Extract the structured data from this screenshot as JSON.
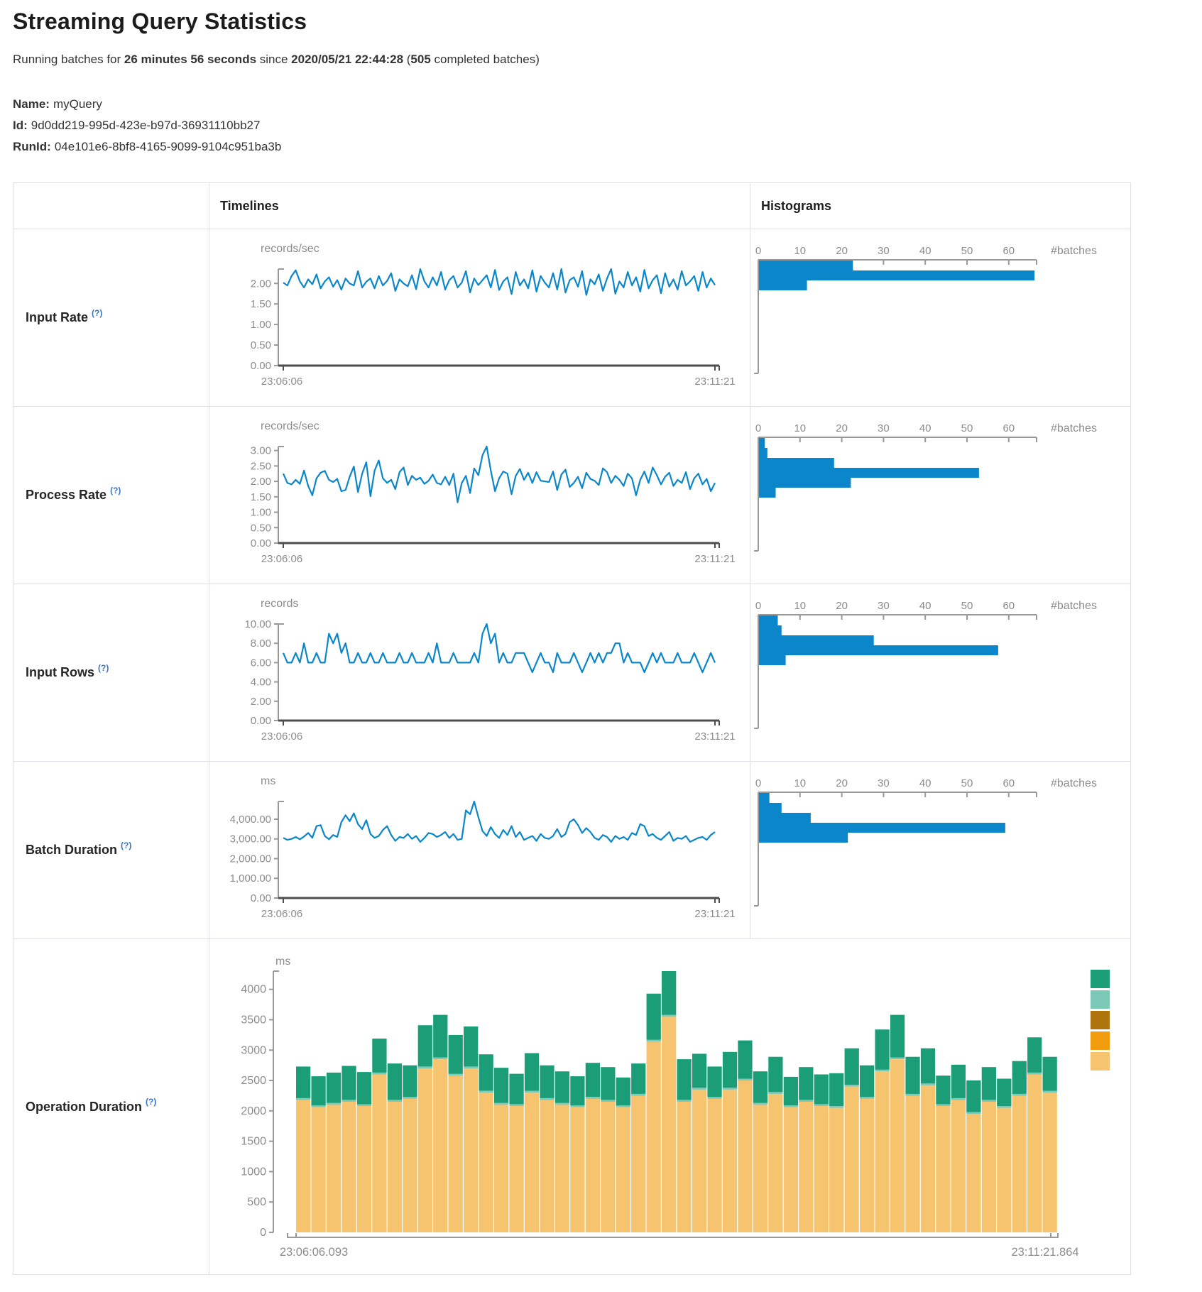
{
  "page": {
    "title": "Streaming Query Statistics",
    "subtitle": {
      "prefix": "Running batches for ",
      "duration": "26 minutes 56 seconds",
      "mid": " since ",
      "start_time": "2020/05/21 22:44:28",
      "open_paren": " (",
      "batch_count": "505",
      "suffix": " completed batches)"
    },
    "meta": [
      {
        "label": "Name:",
        "value": "myQuery"
      },
      {
        "label": "Id:",
        "value": "9d0dd219-995d-423e-b97d-36931110bb27"
      },
      {
        "label": "RunId:",
        "value": "04e101e6-8bf8-4165-9099-9104c951ba3b"
      }
    ]
  },
  "table": {
    "headers": {
      "timelines": "Timelines",
      "histograms": "Histograms"
    },
    "help_symbol": "(?)"
  },
  "chart_data": [
    {
      "label": "Input Rate",
      "timeline": {
        "type": "line",
        "unit": "records/sec",
        "line_color": "#0b86ca",
        "x_start": "23:06:06",
        "x_end": "23:11:21",
        "ymax": 2.35,
        "ytick_values": [
          2.0,
          1.5,
          1.0,
          0.5,
          0.0
        ],
        "ytick_labels": [
          "2.00",
          "1.50",
          "1.00",
          "0.50",
          "0.00"
        ],
        "values": [
          2.02,
          1.95,
          2.18,
          2.32,
          2.05,
          1.9,
          2.1,
          1.98,
          2.22,
          1.88,
          2.05,
          2.15,
          1.92,
          2.08,
          1.85,
          2.12,
          2.0,
          1.95,
          2.3,
          1.9,
          2.04,
          2.12,
          1.88,
          2.18,
          1.95,
          2.06,
          2.25,
          1.82,
          2.1,
          2.0,
          1.93,
          2.2,
          1.86,
          2.35,
          2.05,
          1.9,
          2.15,
          1.95,
          2.28,
          1.85,
          2.08,
          2.18,
          1.9,
          2.02,
          2.3,
          1.78,
          2.12,
          1.96,
          2.08,
          2.2,
          1.9,
          2.33,
          1.84,
          2.05,
          2.15,
          1.74,
          2.28,
          1.95,
          2.1,
          1.88,
          2.32,
          1.8,
          2.18,
          2.02,
          1.9,
          2.25,
          1.85,
          2.35,
          1.78,
          2.08,
          2.15,
          1.92,
          2.3,
          1.72,
          2.1,
          1.98,
          2.22,
          1.82,
          2.12,
          2.35,
          1.75,
          2.05,
          1.9,
          2.28,
          1.95,
          2.15,
          1.8,
          2.33,
          1.88,
          2.08,
          2.2,
          1.76,
          2.25,
          1.92,
          2.1,
          1.85,
          2.3,
          1.95,
          2.05,
          2.18,
          1.82,
          2.28,
          1.9,
          2.12,
          1.96
        ]
      },
      "histogram": {
        "type": "bar",
        "bar_color": "#0b86ca",
        "xlabel": "#batches",
        "xtick_values": [
          0,
          10,
          20,
          30,
          40,
          50,
          60
        ],
        "xtick_labels": [
          "0",
          "10",
          "20",
          "30",
          "40",
          "50",
          "60"
        ],
        "axis_max": 66.6,
        "bin_counts": [
          22.5,
          66,
          11.5
        ]
      }
    },
    {
      "label": "Process Rate",
      "timeline": {
        "type": "line",
        "unit": "records/sec",
        "line_color": "#0b86ca",
        "x_start": "23:06:06",
        "x_end": "23:11:21",
        "ymax": 3.13,
        "ytick_values": [
          3.0,
          2.5,
          2.0,
          1.5,
          1.0,
          0.5,
          0.0
        ],
        "ytick_labels": [
          "3.00",
          "2.50",
          "2.00",
          "1.50",
          "1.00",
          "0.50",
          "0.00"
        ],
        "values": [
          2.25,
          1.95,
          1.9,
          2.05,
          1.92,
          2.35,
          1.85,
          1.55,
          2.1,
          2.28,
          2.34,
          2.05,
          1.98,
          2.08,
          1.68,
          1.72,
          2.15,
          2.48,
          1.65,
          2.25,
          2.62,
          1.52,
          2.35,
          2.68,
          2.1,
          1.95,
          2.05,
          1.75,
          2.3,
          2.45,
          1.88,
          2.18,
          2.05,
          2.12,
          1.92,
          2.02,
          2.22,
          1.95,
          1.9,
          2.15,
          1.88,
          2.25,
          1.32,
          1.95,
          2.18,
          1.62,
          2.42,
          2.2,
          2.85,
          3.13,
          2.35,
          1.68,
          2.1,
          2.32,
          2.25,
          1.58,
          2.18,
          2.4,
          2.05,
          2.28,
          1.95,
          2.3,
          2.02,
          2.0,
          1.98,
          2.32,
          1.72,
          2.22,
          2.38,
          1.82,
          1.95,
          2.15,
          1.78,
          2.28,
          2.08,
          2.02,
          1.88,
          2.42,
          2.3,
          1.95,
          2.18,
          2.05,
          1.85,
          2.25,
          2.1,
          1.55,
          2.05,
          2.32,
          1.95,
          2.45,
          2.2,
          1.9,
          2.15,
          2.28,
          1.85,
          2.05,
          1.95,
          2.3,
          1.75,
          2.1,
          2.25,
          1.9,
          2.08,
          1.68,
          1.95
        ]
      },
      "histogram": {
        "type": "bar",
        "bar_color": "#0b86ca",
        "xlabel": "#batches",
        "xtick_values": [
          0,
          10,
          20,
          30,
          40,
          50,
          60
        ],
        "xtick_labels": [
          "0",
          "10",
          "20",
          "30",
          "40",
          "50",
          "60"
        ],
        "axis_max": 66.6,
        "bin_counts": [
          1.4,
          2,
          18,
          52.7,
          22,
          4
        ]
      }
    },
    {
      "label": "Input Rows",
      "timeline": {
        "type": "line",
        "unit": "records",
        "line_color": "#0b86ca",
        "x_start": "23:06:06",
        "x_end": "23:11:21",
        "ymax": 10,
        "ytick_values": [
          10,
          8,
          6,
          4,
          2,
          0
        ],
        "ytick_labels": [
          "10.00",
          "8.00",
          "6.00",
          "4.00",
          "2.00",
          "0.00"
        ],
        "values": [
          7,
          6,
          6,
          7,
          6,
          8,
          6,
          6,
          7,
          6,
          6,
          9,
          8,
          9,
          7,
          8,
          6,
          6,
          7,
          6,
          6,
          7,
          6,
          6,
          7,
          6,
          6,
          6,
          7,
          6,
          6,
          7,
          6,
          6,
          6,
          7,
          6,
          8,
          6,
          6,
          6,
          7,
          6,
          6,
          6,
          6,
          7,
          6,
          9,
          10,
          8,
          9,
          6,
          7,
          6,
          6,
          7,
          7,
          7,
          6,
          5,
          6,
          7,
          6,
          6,
          5,
          7,
          6,
          6,
          6,
          7,
          6,
          5,
          6,
          7,
          6,
          7,
          6,
          7,
          7,
          8,
          8,
          6,
          7,
          6,
          6,
          6,
          5,
          6,
          7,
          6,
          7,
          6,
          6,
          6,
          7,
          6,
          6,
          6,
          7,
          6,
          5,
          6,
          7,
          6
        ]
      },
      "histogram": {
        "type": "bar",
        "bar_color": "#0b86ca",
        "xlabel": "#batches",
        "xtick_values": [
          0,
          10,
          20,
          30,
          40,
          50,
          60
        ],
        "xtick_labels": [
          "0",
          "10",
          "20",
          "30",
          "40",
          "50",
          "60"
        ],
        "axis_max": 66.6,
        "bin_counts": [
          4.5,
          5.4,
          27.5,
          57.3,
          6.4
        ]
      }
    },
    {
      "label": "Batch Duration",
      "timeline": {
        "type": "line",
        "unit": "ms",
        "line_color": "#0b86ca",
        "x_start": "23:06:06",
        "x_end": "23:11:21",
        "ymax": 4900,
        "ytick_values": [
          4000,
          3000,
          2000,
          1000,
          0
        ],
        "ytick_labels": [
          "4,000.00",
          "3,000.00",
          "2,000.00",
          "1,000.00",
          "0.00"
        ],
        "values": [
          3050,
          2950,
          3000,
          3100,
          2980,
          3120,
          3300,
          3060,
          3650,
          3700,
          3150,
          2980,
          3200,
          3100,
          3850,
          4200,
          3900,
          4300,
          3750,
          3500,
          3950,
          3250,
          3050,
          3150,
          3450,
          3650,
          3200,
          2900,
          3100,
          3050,
          3250,
          3000,
          3150,
          2850,
          3050,
          3300,
          3250,
          3100,
          3200,
          3350,
          3050,
          3250,
          2950,
          3000,
          4450,
          4250,
          4900,
          4100,
          3400,
          3150,
          3600,
          3250,
          3050,
          3450,
          3200,
          3650,
          3100,
          3350,
          2950,
          3050,
          3150,
          2900,
          3250,
          3050,
          3000,
          3150,
          3500,
          3100,
          3250,
          3850,
          4000,
          3700,
          3300,
          3550,
          3350,
          3050,
          2950,
          3200,
          3100,
          2850,
          3150,
          3000,
          3100,
          2950,
          3300,
          3200,
          3750,
          3650,
          3150,
          3250,
          3050,
          2950,
          3150,
          3350,
          2900,
          3050,
          3000,
          3150,
          2850,
          2950,
          3050,
          3100,
          2950,
          3200,
          3350
        ]
      },
      "histogram": {
        "type": "bar",
        "bar_color": "#0b86ca",
        "xlabel": "#batches",
        "xtick_values": [
          0,
          10,
          20,
          30,
          40,
          50,
          60
        ],
        "xtick_labels": [
          "0",
          "10",
          "20",
          "30",
          "40",
          "50",
          "60"
        ],
        "axis_max": 66.6,
        "bin_counts": [
          2.5,
          5.4,
          12.4,
          59,
          21.3
        ]
      }
    },
    {
      "label": "Operation Duration",
      "timeline": {
        "type": "stacked-bar",
        "unit": "ms",
        "x_start": "23:06:06.093",
        "x_end": "23:11:21.864",
        "ymax": 4300,
        "ytick_values": [
          4000,
          3500,
          3000,
          2500,
          2000,
          1500,
          1000,
          500,
          0
        ],
        "ytick_labels": [
          "4000",
          "3500",
          "3000",
          "2500",
          "2000",
          "1500",
          "1000",
          "500",
          "0"
        ],
        "series": [
          {
            "name": "bottom-segment",
            "color": "#f6c46e",
            "values": [
              2180,
              2060,
              2100,
              2150,
              2080,
              2600,
              2150,
              2200,
              2700,
              2850,
              2580,
              2700,
              2300,
              2100,
              2080,
              2300,
              2180,
              2100,
              2060,
              2200,
              2150,
              2060,
              2250,
              3140,
              3550,
              2150,
              2350,
              2200,
              2350,
              2500,
              2100,
              2280,
              2060,
              2150,
              2080,
              2050,
              2400,
              2200,
              2650,
              2850,
              2250,
              2420,
              2080,
              2180,
              1950,
              2150,
              2050,
              2250,
              2600,
              2300
            ]
          },
          {
            "name": "middle-segment",
            "color": "#7cc9b7",
            "constant": 30
          },
          {
            "name": "top-segment",
            "color": "#1b9e77",
            "values": [
              520,
              480,
              500,
              560,
              530,
              560,
              600,
              520,
              680,
              700,
              640,
              660,
              600,
              580,
              500,
              620,
              540,
              520,
              480,
              560,
              540,
              460,
              500,
              760,
              720,
              670,
              560,
              500,
              590,
              630,
              520,
              580,
              470,
              540,
              490,
              540,
              600,
              520,
              660,
              700,
              610,
              580,
              470,
              550,
              520,
              540,
              450,
              540,
              580,
              560
            ]
          }
        ],
        "legend_colors": [
          "#1b9e77",
          "#7cc9b7",
          "#b0740f",
          "#f29b0c",
          "#f6c46e"
        ],
        "legend_position": "right"
      }
    }
  ]
}
